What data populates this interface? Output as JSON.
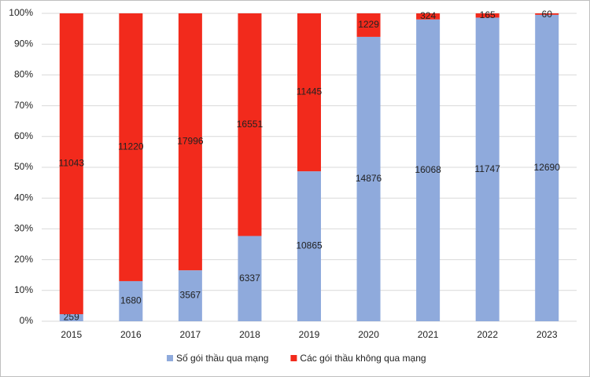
{
  "chart_data": {
    "type": "bar",
    "stack": "percent",
    "categories": [
      "2015",
      "2016",
      "2017",
      "2018",
      "2019",
      "2020",
      "2021",
      "2022",
      "2023"
    ],
    "series": [
      {
        "name": "Số gói thầu qua mạng",
        "color": "#8faadc",
        "values": [
          259,
          1680,
          3567,
          6337,
          10865,
          14876,
          16068,
          11747,
          12690
        ]
      },
      {
        "name": "Các gói thầu không qua mạng",
        "color": "#f22a1c",
        "values": [
          11043,
          11220,
          17996,
          16551,
          11445,
          1229,
          324,
          165,
          60
        ]
      }
    ],
    "ylim": [
      0,
      100
    ],
    "yticks": [
      {
        "value": 0,
        "label": "0%"
      },
      {
        "value": 10,
        "label": "10%"
      },
      {
        "value": 20,
        "label": "20%"
      },
      {
        "value": 30,
        "label": "30%"
      },
      {
        "value": 40,
        "label": "40%"
      },
      {
        "value": 50,
        "label": "50%"
      },
      {
        "value": 60,
        "label": "60%"
      },
      {
        "value": 70,
        "label": "70%"
      },
      {
        "value": 80,
        "label": "80%"
      },
      {
        "value": 90,
        "label": "90%"
      },
      {
        "value": 100,
        "label": "100%"
      }
    ],
    "grid": true,
    "legend": "bottom"
  }
}
